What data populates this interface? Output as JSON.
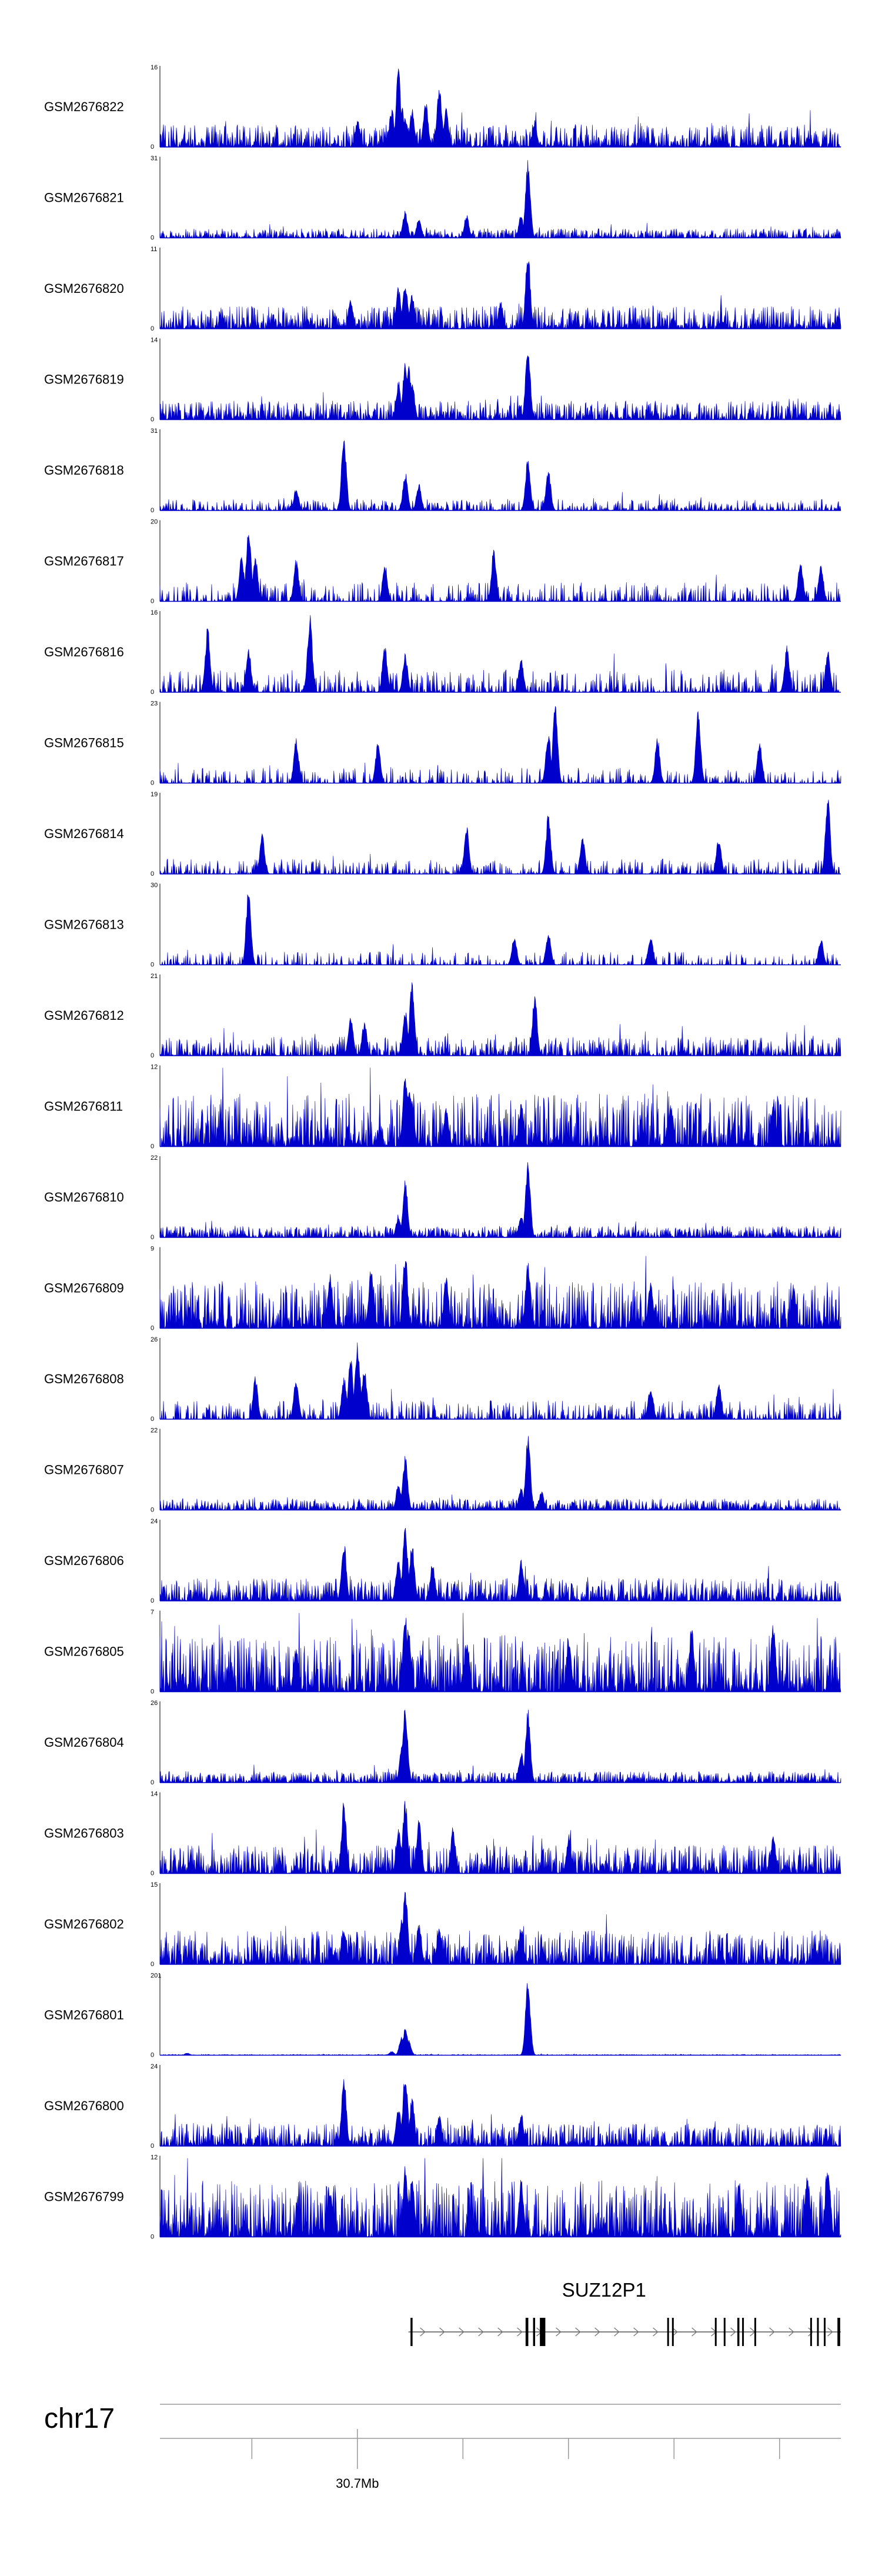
{
  "chart_data": {
    "type": "area",
    "title": "",
    "series_color": "#0000cc",
    "tracks": [
      {
        "name": "GSM2676822",
        "ymax": "16",
        "ymin": "0",
        "seed": 22,
        "peaks": [
          [
            0.36,
            0.4
          ],
          [
            0.355,
            0.55
          ],
          [
            0.34,
            0.5
          ],
          [
            0.35,
            1.0
          ],
          [
            0.37,
            0.5
          ],
          [
            0.39,
            0.6
          ],
          [
            0.41,
            0.8
          ],
          [
            0.42,
            0.5
          ],
          [
            0.29,
            0.35
          ],
          [
            0.55,
            0.3
          ]
        ],
        "base": 0.12,
        "sparse": 0.05
      },
      {
        "name": "GSM2676821",
        "ymax": "31",
        "ymin": "0",
        "seed": 21,
        "peaks": [
          [
            0.54,
            1.0
          ],
          [
            0.53,
            0.3
          ],
          [
            0.36,
            0.35
          ],
          [
            0.45,
            0.3
          ],
          [
            0.38,
            0.25
          ]
        ],
        "base": 0.05,
        "sparse": 0.1
      },
      {
        "name": "GSM2676820",
        "ymax": "11",
        "ymin": "0",
        "seed": 20,
        "peaks": [
          [
            0.54,
            1.0
          ],
          [
            0.36,
            0.6
          ],
          [
            0.35,
            0.55
          ],
          [
            0.37,
            0.45
          ],
          [
            0.28,
            0.4
          ],
          [
            0.5,
            0.35
          ]
        ],
        "base": 0.12,
        "sparse": 0.05
      },
      {
        "name": "GSM2676819",
        "ymax": "14",
        "ymin": "0",
        "seed": 19,
        "peaks": [
          [
            0.54,
            1.0
          ],
          [
            0.36,
            0.75
          ],
          [
            0.365,
            0.7
          ],
          [
            0.37,
            0.5
          ],
          [
            0.35,
            0.5
          ]
        ],
        "base": 0.1,
        "sparse": 0.08
      },
      {
        "name": "GSM2676818",
        "ymax": "31",
        "ymin": "0",
        "seed": 18,
        "peaks": [
          [
            0.27,
            1.0
          ],
          [
            0.36,
            0.5
          ],
          [
            0.54,
            0.7
          ],
          [
            0.57,
            0.55
          ],
          [
            0.38,
            0.35
          ],
          [
            0.2,
            0.3
          ]
        ],
        "base": 0.06,
        "sparse": 0.35
      },
      {
        "name": "GSM2676817",
        "ymax": "20",
        "ymin": "0",
        "seed": 17,
        "peaks": [
          [
            0.13,
            1.0
          ],
          [
            0.14,
            0.6
          ],
          [
            0.12,
            0.6
          ],
          [
            0.49,
            0.7
          ],
          [
            0.33,
            0.5
          ],
          [
            0.2,
            0.55
          ],
          [
            0.94,
            0.55
          ],
          [
            0.97,
            0.5
          ]
        ],
        "base": 0.1,
        "sparse": 0.45
      },
      {
        "name": "GSM2676816",
        "ymax": "16",
        "ymin": "0",
        "seed": 16,
        "peaks": [
          [
            0.07,
            0.85
          ],
          [
            0.22,
            1.0
          ],
          [
            0.13,
            0.6
          ],
          [
            0.33,
            0.6
          ],
          [
            0.36,
            0.5
          ],
          [
            0.92,
            0.6
          ],
          [
            0.98,
            0.55
          ],
          [
            0.53,
            0.45
          ]
        ],
        "base": 0.12,
        "sparse": 0.4
      },
      {
        "name": "GSM2676815",
        "ymax": "23",
        "ymin": "0",
        "seed": 15,
        "peaks": [
          [
            0.58,
            1.0
          ],
          [
            0.57,
            0.7
          ],
          [
            0.79,
            0.95
          ],
          [
            0.73,
            0.6
          ],
          [
            0.88,
            0.55
          ],
          [
            0.2,
            0.6
          ],
          [
            0.32,
            0.55
          ]
        ],
        "base": 0.08,
        "sparse": 0.5
      },
      {
        "name": "GSM2676814",
        "ymax": "19",
        "ymin": "0",
        "seed": 14,
        "peaks": [
          [
            0.57,
            0.8
          ],
          [
            0.98,
            1.0
          ],
          [
            0.45,
            0.65
          ],
          [
            0.15,
            0.55
          ],
          [
            0.62,
            0.5
          ],
          [
            0.82,
            0.5
          ]
        ],
        "base": 0.08,
        "sparse": 0.45
      },
      {
        "name": "GSM2676813",
        "ymax": "30",
        "ymin": "0",
        "seed": 13,
        "peaks": [
          [
            0.13,
            1.0
          ],
          [
            0.57,
            0.45
          ],
          [
            0.72,
            0.4
          ],
          [
            0.52,
            0.4
          ],
          [
            0.97,
            0.35
          ]
        ],
        "base": 0.07,
        "sparse": 0.55
      },
      {
        "name": "GSM2676812",
        "ymax": "21",
        "ymin": "0",
        "seed": 12,
        "peaks": [
          [
            0.37,
            1.0
          ],
          [
            0.55,
            0.8
          ],
          [
            0.36,
            0.6
          ],
          [
            0.28,
            0.55
          ],
          [
            0.3,
            0.45
          ]
        ],
        "base": 0.1,
        "sparse": 0.2
      },
      {
        "name": "GSM2676811",
        "ymax": "12",
        "ymin": "0",
        "seed": 11,
        "peaks": [
          [
            0.36,
            1.0
          ],
          [
            0.365,
            0.8
          ],
          [
            0.37,
            0.6
          ],
          [
            0.42,
            0.5
          ],
          [
            0.53,
            0.55
          ],
          [
            0.75,
            0.55
          ],
          [
            0.9,
            0.6
          ]
        ],
        "base": 0.28,
        "sparse": 0.05
      },
      {
        "name": "GSM2676810",
        "ymax": "22",
        "ymin": "0",
        "seed": 10,
        "peaks": [
          [
            0.36,
            0.75
          ],
          [
            0.54,
            1.0
          ],
          [
            0.35,
            0.3
          ],
          [
            0.53,
            0.3
          ]
        ],
        "base": 0.06,
        "sparse": 0.05
      },
      {
        "name": "GSM2676809",
        "ymax": "9",
        "ymin": "0",
        "seed": 9,
        "peaks": [
          [
            0.36,
            1.0
          ],
          [
            0.31,
            0.85
          ],
          [
            0.54,
            0.9
          ],
          [
            0.25,
            0.7
          ],
          [
            0.42,
            0.7
          ],
          [
            0.72,
            0.6
          ],
          [
            0.93,
            0.55
          ]
        ],
        "base": 0.25,
        "sparse": 0.05
      },
      {
        "name": "GSM2676808",
        "ymax": "26",
        "ymin": "0",
        "seed": 8,
        "peaks": [
          [
            0.29,
            1.0
          ],
          [
            0.3,
            0.7
          ],
          [
            0.28,
            0.8
          ],
          [
            0.27,
            0.55
          ],
          [
            0.2,
            0.55
          ],
          [
            0.14,
            0.55
          ],
          [
            0.82,
            0.5
          ],
          [
            0.72,
            0.45
          ]
        ],
        "base": 0.1,
        "sparse": 0.4
      },
      {
        "name": "GSM2676807",
        "ymax": "22",
        "ymin": "0",
        "seed": 7,
        "peaks": [
          [
            0.54,
            1.0
          ],
          [
            0.36,
            0.7
          ],
          [
            0.35,
            0.35
          ],
          [
            0.53,
            0.3
          ],
          [
            0.56,
            0.25
          ]
        ],
        "base": 0.06,
        "sparse": 0.05
      },
      {
        "name": "GSM2676806",
        "ymax": "24",
        "ymin": "0",
        "seed": 6,
        "peaks": [
          [
            0.36,
            1.0
          ],
          [
            0.27,
            0.8
          ],
          [
            0.37,
            0.75
          ],
          [
            0.35,
            0.6
          ],
          [
            0.53,
            0.55
          ],
          [
            0.4,
            0.5
          ]
        ],
        "base": 0.12,
        "sparse": 0.05
      },
      {
        "name": "GSM2676805",
        "ymax": "7",
        "ymin": "0",
        "seed": 5,
        "peaks": [
          [
            0.36,
            1.0
          ],
          [
            0.365,
            0.85
          ],
          [
            0.78,
            0.85
          ],
          [
            0.9,
            0.9
          ],
          [
            0.6,
            0.7
          ],
          [
            0.45,
            0.7
          ],
          [
            0.2,
            0.6
          ]
        ],
        "base": 0.3,
        "sparse": 0.05
      },
      {
        "name": "GSM2676804",
        "ymax": "26",
        "ymin": "0",
        "seed": 4,
        "peaks": [
          [
            0.36,
            1.0
          ],
          [
            0.54,
            0.95
          ],
          [
            0.355,
            0.5
          ],
          [
            0.53,
            0.4
          ]
        ],
        "base": 0.06,
        "sparse": 0.05
      },
      {
        "name": "GSM2676803",
        "ymax": "14",
        "ymin": "0",
        "seed": 3,
        "peaks": [
          [
            0.36,
            1.0
          ],
          [
            0.27,
            0.95
          ],
          [
            0.38,
            0.7
          ],
          [
            0.43,
            0.6
          ],
          [
            0.35,
            0.6
          ],
          [
            0.6,
            0.5
          ],
          [
            0.9,
            0.5
          ]
        ],
        "base": 0.15,
        "sparse": 0.05
      },
      {
        "name": "GSM2676802",
        "ymax": "15",
        "ymin": "0",
        "seed": 2,
        "peaks": [
          [
            0.36,
            1.0
          ],
          [
            0.355,
            0.6
          ],
          [
            0.38,
            0.55
          ],
          [
            0.27,
            0.5
          ],
          [
            0.53,
            0.5
          ],
          [
            0.41,
            0.5
          ]
        ],
        "base": 0.18,
        "sparse": 0.05
      },
      {
        "name": "GSM2676801",
        "ymax": "201",
        "ymin": "0",
        "seed": 1,
        "peaks": [
          [
            0.54,
            1.0
          ],
          [
            0.36,
            0.35
          ],
          [
            0.355,
            0.25
          ],
          [
            0.365,
            0.2
          ],
          [
            0.34,
            0.05
          ],
          [
            0.04,
            0.03
          ]
        ],
        "base": 0.005,
        "sparse": 0.05
      },
      {
        "name": "GSM2676800",
        "ymax": "24",
        "ymin": "0",
        "seed": 30,
        "peaks": [
          [
            0.36,
            1.0
          ],
          [
            0.27,
            0.9
          ],
          [
            0.37,
            0.65
          ],
          [
            0.35,
            0.55
          ],
          [
            0.53,
            0.45
          ],
          [
            0.41,
            0.4
          ]
        ],
        "base": 0.12,
        "sparse": 0.05
      },
      {
        "name": "GSM2676799",
        "ymax": "12",
        "ymin": "0",
        "seed": 31,
        "peaks": [
          [
            0.36,
            0.95
          ],
          [
            0.98,
            1.0
          ],
          [
            0.37,
            0.8
          ],
          [
            0.53,
            0.75
          ],
          [
            0.95,
            0.85
          ],
          [
            0.85,
            0.75
          ],
          [
            0.25,
            0.6
          ]
        ],
        "base": 0.3,
        "sparse": 0.05
      }
    ],
    "gene_track": {
      "name": "SUZ12P1",
      "start_frac": 0.365,
      "end_frac": 1.0,
      "strand": "+",
      "exons": [
        [
          0.368,
          0.003
        ],
        [
          0.537,
          0.004
        ],
        [
          0.548,
          0.003
        ],
        [
          0.558,
          0.008
        ],
        [
          0.745,
          0.002
        ],
        [
          0.752,
          0.002
        ],
        [
          0.815,
          0.002
        ],
        [
          0.828,
          0.002
        ],
        [
          0.848,
          0.003
        ],
        [
          0.855,
          0.002
        ],
        [
          0.873,
          0.002
        ],
        [
          0.955,
          0.002
        ],
        [
          0.965,
          0.002
        ],
        [
          0.975,
          0.002
        ],
        [
          0.995,
          0.004
        ]
      ]
    },
    "axis": {
      "chromosome": "chr17",
      "tick_fracs": [
        0.135,
        0.29,
        0.445,
        0.6,
        0.755,
        0.91
      ],
      "label_tick_frac": 0.29,
      "label": "30.7Mb"
    }
  }
}
